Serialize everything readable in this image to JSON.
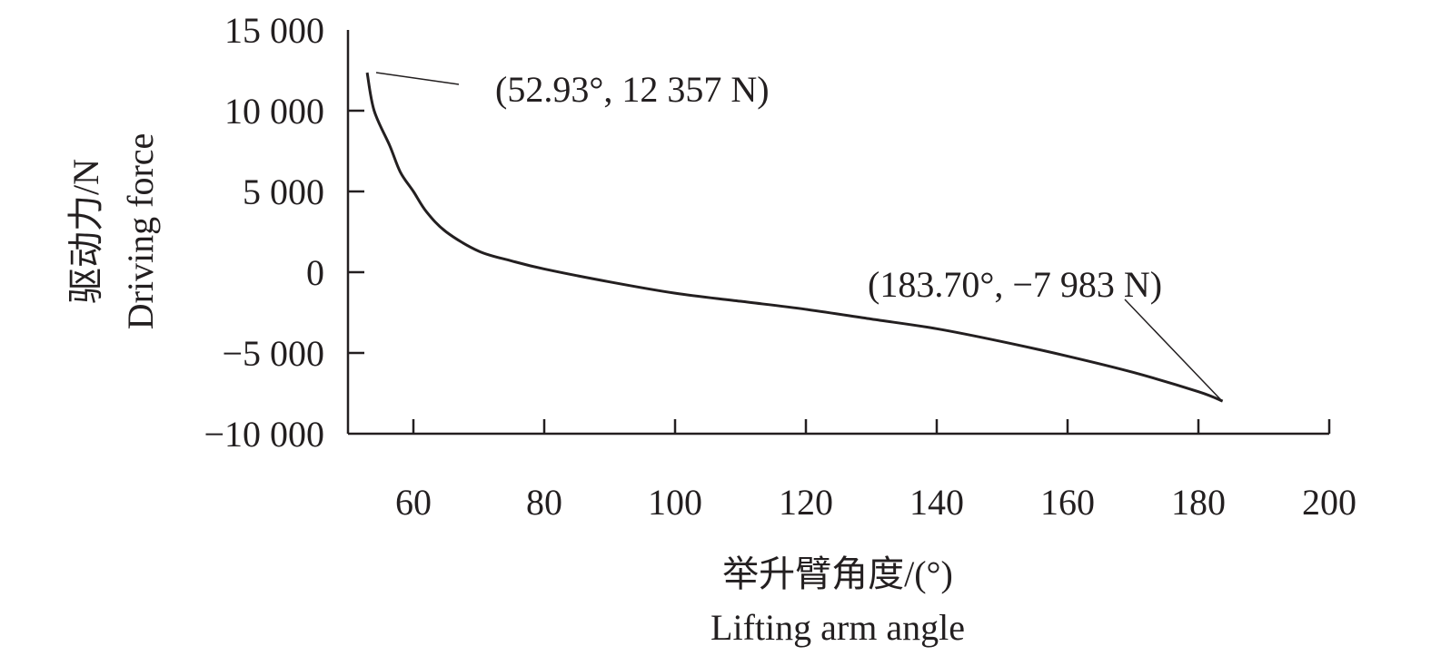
{
  "chart_data": {
    "type": "line",
    "title": "",
    "xlabel_cn": "举升臂角度/(°)",
    "xlabel_en": "Lifting arm angle",
    "ylabel_cn": "驱动力/N",
    "ylabel_en": "Driving force",
    "xlim": [
      50,
      200
    ],
    "ylim": [
      -10000,
      15000
    ],
    "x_ticks": [
      60,
      80,
      100,
      120,
      140,
      160,
      180,
      200
    ],
    "x_tick_labels": [
      "60",
      "80",
      "100",
      "120",
      "140",
      "160",
      "180",
      "200"
    ],
    "y_ticks": [
      15000,
      10000,
      5000,
      0,
      -5000,
      -10000
    ],
    "y_tick_labels": [
      "15 000",
      "10 000",
      "5 000",
      "0",
      "−5 000",
      "−10 000"
    ],
    "grid": false,
    "series": [
      {
        "name": "Driving force",
        "color": "#231f20",
        "x": [
          52.93,
          54,
          56.4,
          58,
          60,
          62,
          65,
          70,
          75,
          80,
          90,
          100,
          110,
          120,
          130,
          140,
          150,
          160,
          170,
          180,
          183.7
        ],
        "y": [
          12357,
          10000,
          7820,
          6200,
          5000,
          3740,
          2500,
          1300,
          700,
          200,
          -600,
          -1300,
          -1800,
          -2300,
          -2900,
          -3500,
          -4300,
          -5200,
          -6200,
          -7400,
          -7983
        ]
      }
    ],
    "annotations": [
      {
        "text": "(52.93°, 12 357 N)",
        "x": 52.93,
        "y": 12357
      },
      {
        "text": "(183.70°, −7 983 N)",
        "x": 183.7,
        "y": -7983
      }
    ]
  }
}
